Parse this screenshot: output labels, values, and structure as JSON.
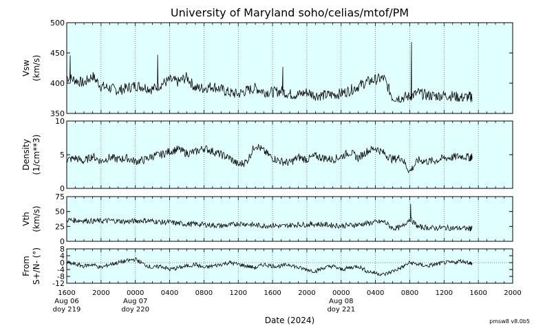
{
  "title": "University of Maryland  soho/celias/mtof/PM",
  "xlabel": "Date (2024)",
  "version": "pmsw8 v8.0b5",
  "colors": {
    "panel_bg": "#e0ffff",
    "line": "#000000",
    "grid": "#555555",
    "frame": "#000000"
  },
  "x_axis": {
    "range_hours": [
      0,
      52
    ],
    "ticks": [
      {
        "t": 0,
        "label": "1600",
        "date": "Aug 06",
        "doy": "doy 219"
      },
      {
        "t": 4,
        "label": "2000"
      },
      {
        "t": 8,
        "label": "0000",
        "date": "Aug 07",
        "doy": "doy 220"
      },
      {
        "t": 12,
        "label": "0400"
      },
      {
        "t": 16,
        "label": "0800"
      },
      {
        "t": 20,
        "label": "1200"
      },
      {
        "t": 24,
        "label": "1600"
      },
      {
        "t": 28,
        "label": "2000"
      },
      {
        "t": 32,
        "label": "0000",
        "date": "Aug 08",
        "doy": "doy 221"
      },
      {
        "t": 36,
        "label": "0400"
      },
      {
        "t": 40,
        "label": "0800"
      },
      {
        "t": 44,
        "label": "1200"
      },
      {
        "t": 48,
        "label": "1600"
      },
      {
        "t": 52,
        "label": "2000"
      }
    ]
  },
  "chart_data": [
    {
      "type": "line",
      "ylabel": [
        "Vsw",
        "(km/s)"
      ],
      "ylim": [
        350,
        500
      ],
      "yticks": [
        350,
        400,
        450,
        500
      ],
      "grid": true,
      "series": [
        {
          "x": [
            0,
            1,
            2,
            3,
            4,
            5,
            6,
            7,
            8,
            9,
            10,
            11,
            12,
            13,
            14,
            15,
            16,
            17,
            18,
            19,
            20,
            21,
            22,
            23,
            24,
            25,
            26,
            27,
            28,
            29,
            30,
            31,
            32,
            33,
            34,
            35,
            36,
            37,
            38,
            39,
            40,
            41,
            42,
            43,
            44,
            45,
            46,
            47,
            47.3
          ],
          "values": [
            410,
            405,
            400,
            412,
            395,
            392,
            388,
            392,
            396,
            394,
            390,
            398,
            405,
            402,
            410,
            392,
            392,
            395,
            390,
            384,
            382,
            388,
            392,
            386,
            385,
            387,
            382,
            381,
            385,
            380,
            380,
            381,
            383,
            388,
            395,
            402,
            406,
            408,
            376,
            376,
            378,
            384,
            380,
            379,
            380,
            379,
            376,
            378,
            376
          ]
        }
      ],
      "spikes": [
        {
          "x": 40.2,
          "y": 468
        },
        {
          "x": 10.6,
          "y": 447
        },
        {
          "x": 0.4,
          "y": 446
        },
        {
          "x": 25.2,
          "y": 427
        }
      ]
    },
    {
      "type": "line",
      "ylabel": [
        "Density",
        "(1/cm**3)"
      ],
      "ylim": [
        0,
        10
      ],
      "yticks": [
        0,
        5,
        10
      ],
      "grid": true,
      "series": [
        {
          "x": [
            0,
            1,
            2,
            3,
            4,
            5,
            6,
            7,
            8,
            9,
            10,
            11,
            12,
            13,
            14,
            15,
            16,
            17,
            18,
            19,
            20,
            21,
            22,
            23,
            24,
            25,
            26,
            27,
            28,
            29,
            30,
            31,
            32,
            33,
            34,
            35,
            36,
            37,
            38,
            39,
            40,
            41,
            42,
            43,
            44,
            45,
            46,
            47,
            47.3
          ],
          "values": [
            4.2,
            4.5,
            4.0,
            4.8,
            4.0,
            4.6,
            4.3,
            4.5,
            4.0,
            4.2,
            4.8,
            5.0,
            5.5,
            5.8,
            5.2,
            5.4,
            6.0,
            5.5,
            5.0,
            4.5,
            3.5,
            4.0,
            6.5,
            5.5,
            4.5,
            4.0,
            3.8,
            4.6,
            4.3,
            4.8,
            4.5,
            4.3,
            4.7,
            5.4,
            4.5,
            5.5,
            6.0,
            5.2,
            4.3,
            4.6,
            2.5,
            4.2,
            4.0,
            4.1,
            4.5,
            4.6,
            4.8,
            4.6,
            4.7
          ]
        }
      ]
    },
    {
      "type": "line",
      "ylabel": [
        "Vth",
        "(km/s)"
      ],
      "ylim": [
        0,
        75
      ],
      "yticks": [
        0,
        25,
        50,
        75
      ],
      "grid": true,
      "series": [
        {
          "x": [
            0,
            1,
            2,
            3,
            4,
            5,
            6,
            7,
            8,
            9,
            10,
            11,
            12,
            13,
            14,
            15,
            16,
            17,
            18,
            19,
            20,
            21,
            22,
            23,
            24,
            25,
            26,
            27,
            28,
            29,
            30,
            31,
            32,
            33,
            34,
            35,
            36,
            37,
            38,
            39,
            40,
            41,
            42,
            43,
            44,
            45,
            46,
            47,
            47.3
          ],
          "values": [
            36,
            35,
            35,
            34,
            34,
            35,
            34,
            33,
            34,
            35,
            34,
            32,
            32,
            30,
            29,
            29,
            28,
            27,
            26,
            27,
            30,
            29,
            27,
            26,
            27,
            25,
            27,
            28,
            28,
            29,
            28,
            27,
            26,
            27,
            28,
            30,
            32,
            33,
            22,
            23,
            38,
            24,
            23,
            22,
            23,
            22,
            22,
            21,
            22
          ]
        }
      ],
      "spikes": [
        {
          "x": 40.1,
          "y": 63
        }
      ]
    },
    {
      "type": "line",
      "ylabel": [
        "From",
        "S+/N- (°)"
      ],
      "ylim": [
        -12,
        8
      ],
      "yticks": [
        -12,
        -8,
        -4,
        0,
        4,
        8
      ],
      "grid": true,
      "zero_line": true,
      "series": [
        {
          "x": [
            0,
            1,
            2,
            3,
            4,
            5,
            6,
            7,
            8,
            9,
            10,
            11,
            12,
            13,
            14,
            15,
            16,
            17,
            18,
            19,
            20,
            21,
            22,
            23,
            24,
            25,
            26,
            27,
            28,
            29,
            30,
            31,
            32,
            33,
            34,
            35,
            36,
            37,
            38,
            39,
            40,
            41,
            42,
            43,
            44,
            45,
            46,
            47,
            47.3
          ],
          "values": [
            0,
            -1,
            -2,
            -1,
            -3,
            -1,
            0,
            1,
            2,
            -1,
            -3,
            -2,
            -4,
            -3,
            -2,
            -1,
            -3,
            -2,
            -1,
            0,
            -1,
            -2,
            -3,
            -1,
            -2,
            -2,
            -1,
            -3,
            -4,
            -5,
            -3,
            -2,
            -4,
            -3,
            -2,
            -5,
            -6,
            -7,
            -5,
            -3,
            0,
            -1,
            -2,
            -1,
            0,
            0,
            1,
            0,
            -1
          ]
        }
      ]
    }
  ]
}
